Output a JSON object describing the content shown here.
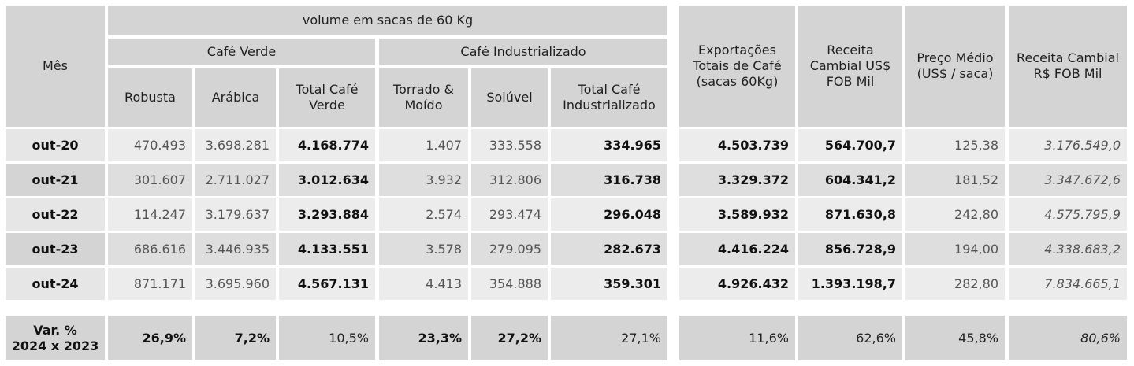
{
  "header": {
    "mes": "Mês",
    "volume": "volume em sacas de 60 Kg",
    "cafe_verde": "Café Verde",
    "cafe_industrializado": "Café Industrializado",
    "robusta": "Robusta",
    "arabica": "Arábica",
    "total_verde": "Total Café Verde",
    "torrado": "Torrado & Moído",
    "soluvel": "Solúvel",
    "total_ind": "Total Café Industrializado",
    "exportacoes": "Exportações Totais de Café (sacas 60Kg)",
    "receita_usd": "Receita Cambial US$ FOB Mil",
    "preco": "Preço Médio (US$ / saca)",
    "receita_brl": "Receita Cambial R$ FOB Mil"
  },
  "rows": [
    {
      "mes": "out-20",
      "robusta": "470.493",
      "arabica": "3.698.281",
      "total_verde": "4.168.774",
      "torrado": "1.407",
      "soluvel": "333.558",
      "total_ind": "334.965",
      "exportacoes": "4.503.739",
      "receita_usd": "564.700,7",
      "preco": "125,38",
      "receita_brl": "3.176.549,0"
    },
    {
      "mes": "out-21",
      "robusta": "301.607",
      "arabica": "2.711.027",
      "total_verde": "3.012.634",
      "torrado": "3.932",
      "soluvel": "312.806",
      "total_ind": "316.738",
      "exportacoes": "3.329.372",
      "receita_usd": "604.341,2",
      "preco": "181,52",
      "receita_brl": "3.347.672,6"
    },
    {
      "mes": "out-22",
      "robusta": "114.247",
      "arabica": "3.179.637",
      "total_verde": "3.293.884",
      "torrado": "2.574",
      "soluvel": "293.474",
      "total_ind": "296.048",
      "exportacoes": "3.589.932",
      "receita_usd": "871.630,8",
      "preco": "242,80",
      "receita_brl": "4.575.795,9"
    },
    {
      "mes": "out-23",
      "robusta": "686.616",
      "arabica": "3.446.935",
      "total_verde": "4.133.551",
      "torrado": "3.578",
      "soluvel": "279.095",
      "total_ind": "282.673",
      "exportacoes": "4.416.224",
      "receita_usd": "856.728,9",
      "preco": "194,00",
      "receita_brl": "4.338.683,2"
    },
    {
      "mes": "out-24",
      "robusta": "871.171",
      "arabica": "3.695.960",
      "total_verde": "4.567.131",
      "torrado": "4.413",
      "soluvel": "354.888",
      "total_ind": "359.301",
      "exportacoes": "4.926.432",
      "receita_usd": "1.393.198,7",
      "preco": "282,80",
      "receita_brl": "7.834.665,1"
    }
  ],
  "variation": {
    "label_line1": "Var. %",
    "label_line2": "2024 x 2023",
    "robusta": "26,9%",
    "arabica": "7,2%",
    "total_verde": "10,5%",
    "torrado": "23,3%",
    "soluvel": "27,2%",
    "total_ind": "27,1%",
    "exportacoes": "11,6%",
    "receita_usd": "62,6%",
    "preco": "45,8%",
    "receita_brl": "80,6%"
  }
}
